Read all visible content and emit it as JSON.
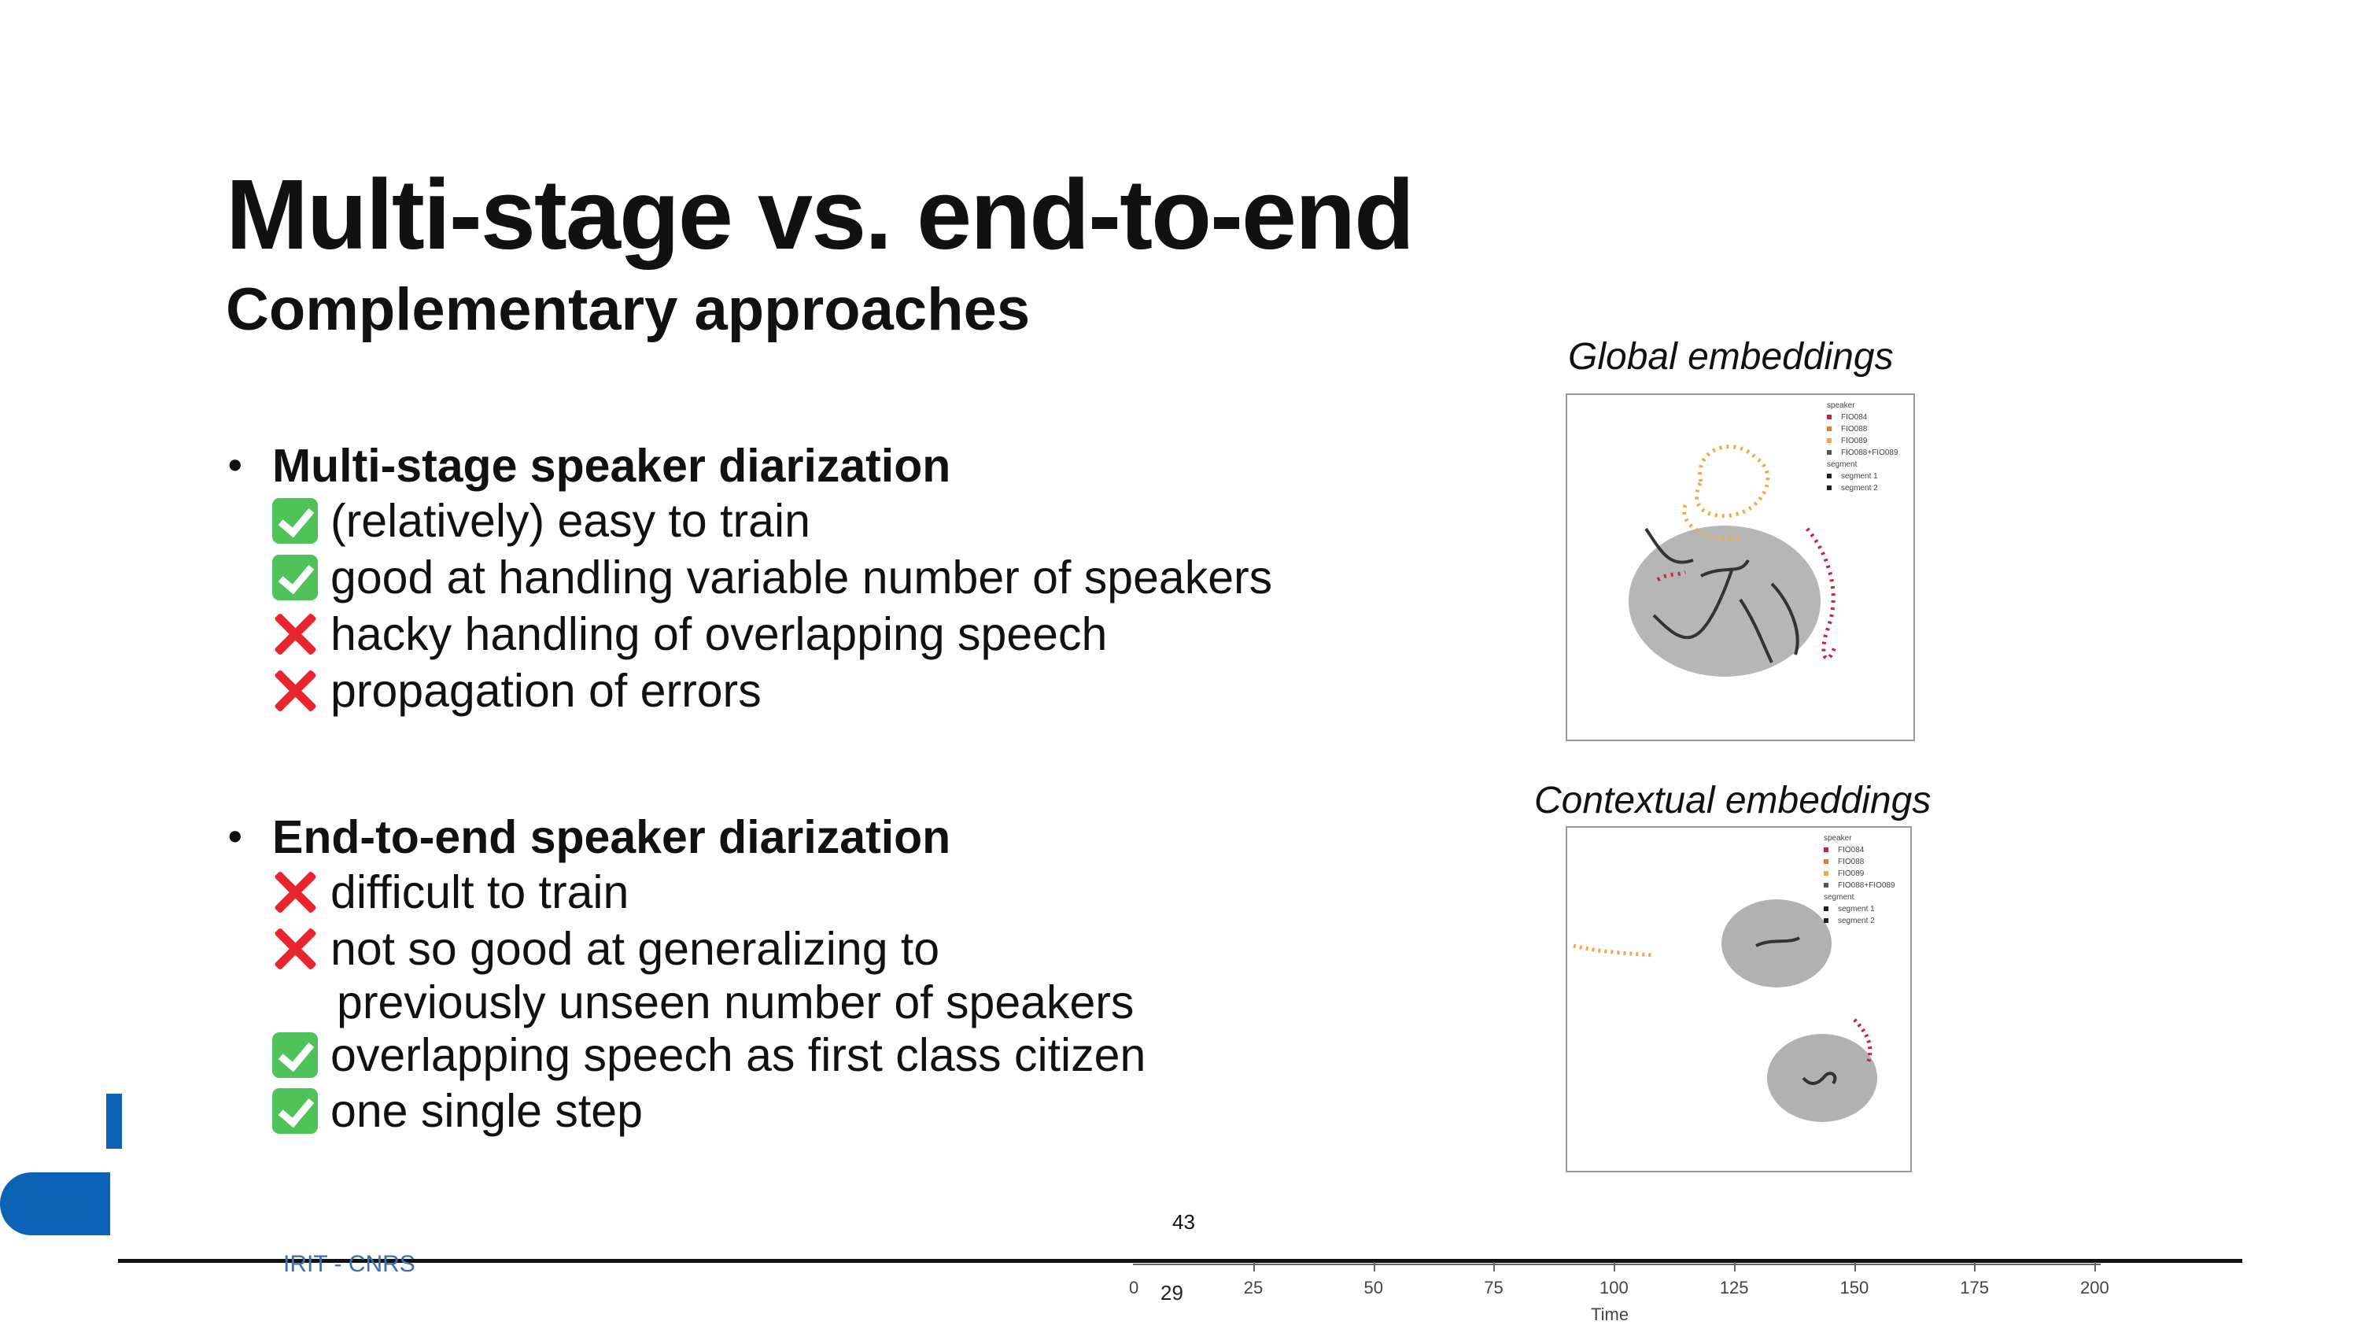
{
  "slide": {
    "title": "Multi-stage vs. end-to-end",
    "subtitle": "Complementary approaches",
    "sections": [
      {
        "heading": "Multi-stage speaker diarization",
        "items": [
          {
            "mark": "check-icon",
            "text": "(relatively) easy to train"
          },
          {
            "mark": "check-icon",
            "text": "good at handling variable number of speakers"
          },
          {
            "mark": "cross-icon",
            "text": "hacky handling of overlapping speech"
          },
          {
            "mark": "cross-icon",
            "text": "propagation of errors"
          }
        ]
      },
      {
        "heading": "End-to-end speaker diarization",
        "items": [
          {
            "mark": "cross-icon",
            "text": "difficult to train"
          },
          {
            "mark": "cross-icon",
            "text": "not so good at generalizing to"
          },
          {
            "mark": "none",
            "text": "previously unseen number of speakers"
          },
          {
            "mark": "check-icon",
            "text": "overlapping speech as first class citizen"
          },
          {
            "mark": "check-icon",
            "text": "one single step"
          }
        ]
      }
    ],
    "figures": [
      {
        "caption": "Global embeddings",
        "legend": [
          "speaker",
          "FIO084",
          "FIO088",
          "FIO089",
          "FIO088+FIO089",
          "segment",
          "segment 1",
          "segment 2"
        ]
      },
      {
        "caption": "Contextual embeddings",
        "legend": [
          "speaker",
          "FIO084",
          "FIO088",
          "FIO089",
          "FIO088+FIO089",
          "segment",
          "segment 1",
          "segment 2"
        ]
      }
    ],
    "colors": {
      "check": "#4fc25a",
      "cross": "#e8242f",
      "speaker_orange": "#f0a94a",
      "speaker_red": "#c0284a",
      "cluster_gray": "#9e9e9e",
      "accent_blue": "#0b63b8"
    }
  },
  "footer": {
    "page_number": "43",
    "org": "IRIT - CNRS",
    "timeline": {
      "current": "29",
      "ticks": [
        "0",
        "25",
        "50",
        "75",
        "100",
        "125",
        "150",
        "175",
        "200"
      ],
      "label": "Time"
    }
  }
}
